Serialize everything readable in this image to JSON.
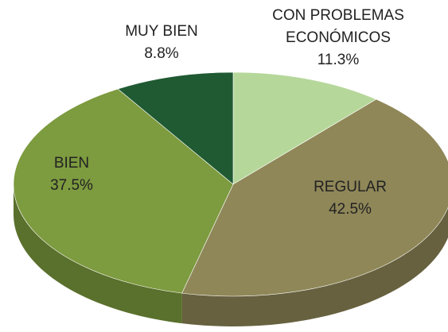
{
  "chart_data": {
    "type": "pie",
    "categories": [
      "CON PROBLEMAS ECONÓMICOS",
      "REGULAR",
      "BIEN",
      "MUY BIEN"
    ],
    "values": [
      11.3,
      42.5,
      37.5,
      8.8
    ],
    "value_labels": [
      "11.3%",
      "42.5%",
      "37.5%",
      "8.8%"
    ],
    "colors": [
      "#b6d79a",
      "#8f8758",
      "#7d9b3f",
      "#1f5a32"
    ]
  }
}
